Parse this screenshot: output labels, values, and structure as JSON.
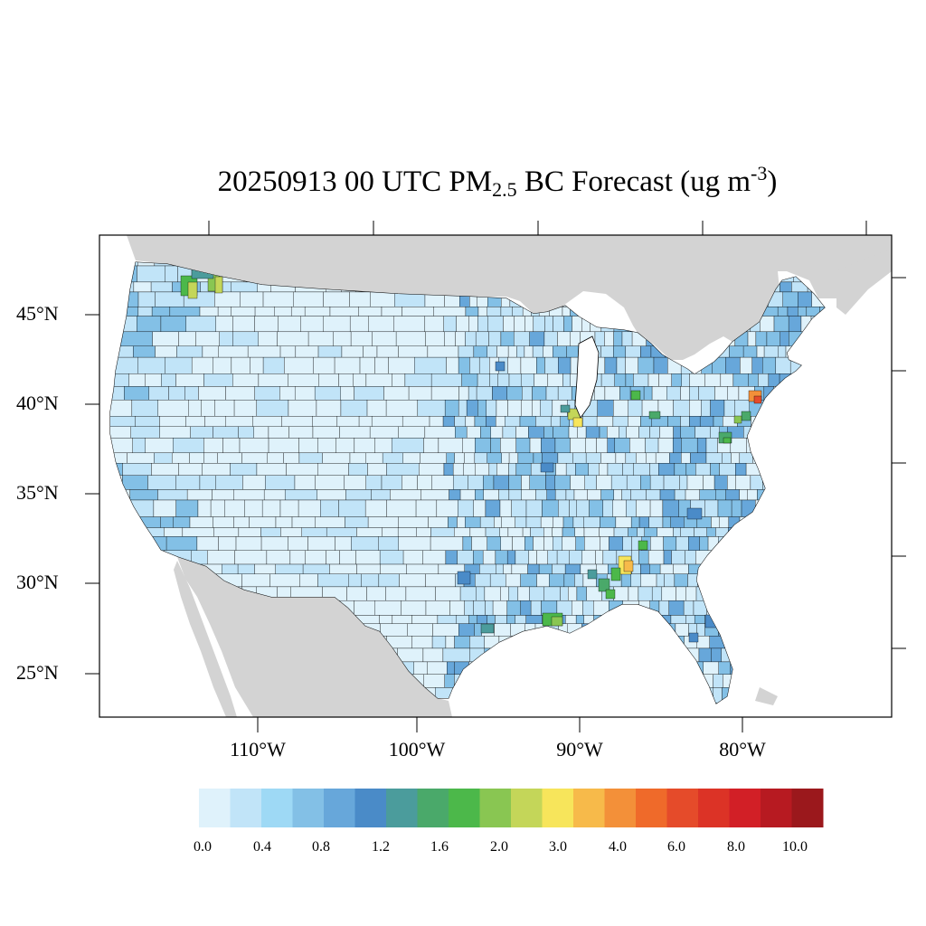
{
  "title": {
    "main": "20250913 00 UTC PM",
    "subscript": "2.5",
    "middle": " BC Forecast (ug m",
    "superscript": "-3",
    "end": ")"
  },
  "axes": {
    "lat_labels": [
      "45°N",
      "40°N",
      "35°N",
      "30°N",
      "25°N"
    ],
    "lon_labels": [
      "110°W",
      "100°W",
      "90°W",
      "80°W"
    ]
  },
  "colorbar": {
    "colors": [
      "#dff2fb",
      "#c1e4f8",
      "#9ed9f5",
      "#83c0e6",
      "#67a7da",
      "#4a8bc8",
      "#4b9c9c",
      "#4aa96a",
      "#4cb84a",
      "#89c652",
      "#c4d659",
      "#f7e55b",
      "#f7ba4a",
      "#f39039",
      "#ef6a2a",
      "#e54b2a",
      "#dc3326",
      "#d21f26",
      "#b71a21",
      "#9b181c"
    ],
    "tick_labels": [
      "0.0",
      "0.4",
      "0.8",
      "1.2",
      "1.6",
      "2.0",
      "3.0",
      "4.0",
      "6.0",
      "8.0",
      "10.0"
    ]
  },
  "map_colors": {
    "land_outside": "#d3d3d3",
    "water": "#ffffff",
    "county_border": "#000000"
  }
}
